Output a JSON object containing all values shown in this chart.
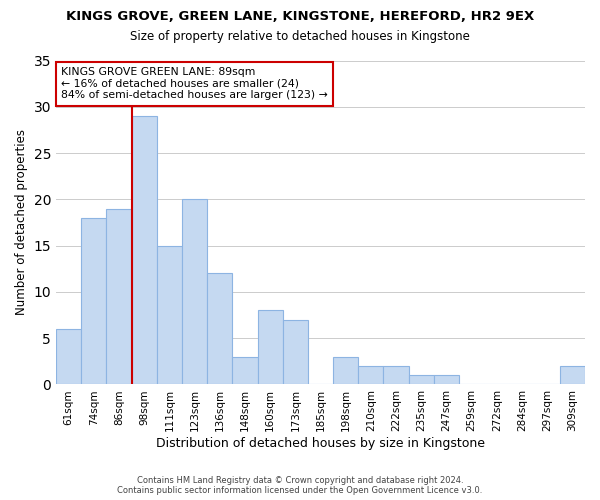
{
  "title": "KINGS GROVE, GREEN LANE, KINGSTONE, HEREFORD, HR2 9EX",
  "subtitle": "Size of property relative to detached houses in Kingstone",
  "xlabel": "Distribution of detached houses by size in Kingstone",
  "ylabel": "Number of detached properties",
  "footer_line1": "Contains HM Land Registry data © Crown copyright and database right 2024.",
  "footer_line2": "Contains public sector information licensed under the Open Government Licence v3.0.",
  "bar_labels": [
    "61sqm",
    "74sqm",
    "86sqm",
    "98sqm",
    "111sqm",
    "123sqm",
    "136sqm",
    "148sqm",
    "160sqm",
    "173sqm",
    "185sqm",
    "198sqm",
    "210sqm",
    "222sqm",
    "235sqm",
    "247sqm",
    "259sqm",
    "272sqm",
    "284sqm",
    "297sqm",
    "309sqm"
  ],
  "bar_values": [
    6,
    18,
    19,
    29,
    15,
    20,
    12,
    3,
    8,
    7,
    0,
    3,
    2,
    2,
    1,
    1,
    0,
    0,
    0,
    0,
    2
  ],
  "bar_color": "#c5d9f1",
  "bar_edge_color": "#8db4e2",
  "marker_bar_index": 3,
  "marker_side": "left",
  "marker_color": "#cc0000",
  "annotation_title": "KINGS GROVE GREEN LANE: 89sqm",
  "annotation_line1": "← 16% of detached houses are smaller (24)",
  "annotation_line2": "84% of semi-detached houses are larger (123) →",
  "annotation_box_color": "#ffffff",
  "annotation_box_edge": "#cc0000",
  "ylim": [
    0,
    35
  ],
  "yticks": [
    0,
    5,
    10,
    15,
    20,
    25,
    30,
    35
  ],
  "background_color": "#ffffff",
  "grid_color": "#cccccc"
}
